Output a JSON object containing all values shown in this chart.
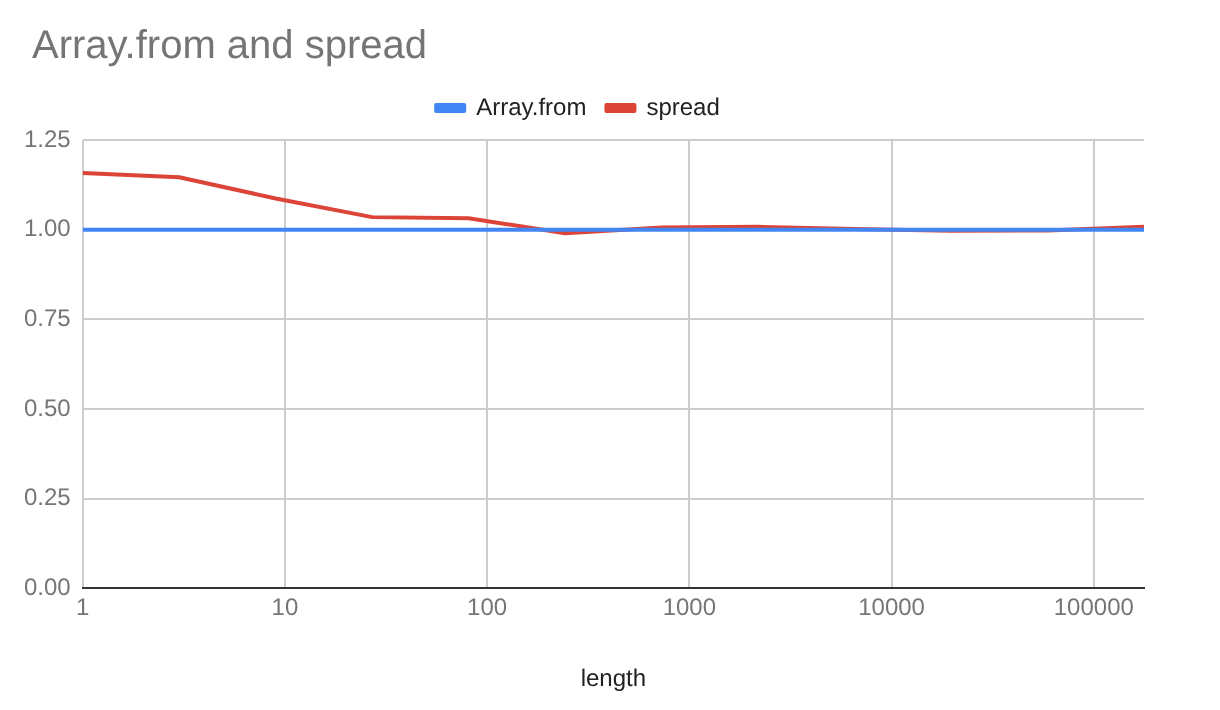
{
  "chart_data": {
    "type": "line",
    "title": "Array.from and spread",
    "xlabel": "length",
    "x": [
      1,
      3,
      9,
      27,
      81,
      243,
      729,
      2187,
      6561,
      19683,
      59049,
      177147
    ],
    "series": [
      {
        "name": "Array.from",
        "color": "#4285f4",
        "values": [
          1,
          1,
          1,
          1,
          1,
          1,
          1,
          1,
          1,
          1,
          1,
          1
        ]
      },
      {
        "name": "spread",
        "color": "#db4437",
        "values": [
          1.158,
          1.146,
          1.087,
          1.035,
          1.032,
          0.99,
          1.006,
          1.008,
          1.002,
          0.997,
          0.998,
          1.008
        ]
      }
    ],
    "log": "x",
    "xlim": [
      1,
      177147
    ],
    "xticks": [
      1,
      10,
      100,
      1000,
      10000,
      100000
    ],
    "ylim": [
      0,
      1.25
    ],
    "yticks": [
      {
        "value": 0,
        "label": "0.00"
      },
      {
        "value": 0.25,
        "label": "0.25"
      },
      {
        "value": 0.5,
        "label": "0.50"
      },
      {
        "value": 0.75,
        "label": "0.75"
      },
      {
        "value": 1,
        "label": "1.00"
      },
      {
        "value": 1.25,
        "label": "1.25"
      }
    ],
    "grid": true,
    "legend": "top",
    "marker": "none",
    "line_style": "solid"
  }
}
